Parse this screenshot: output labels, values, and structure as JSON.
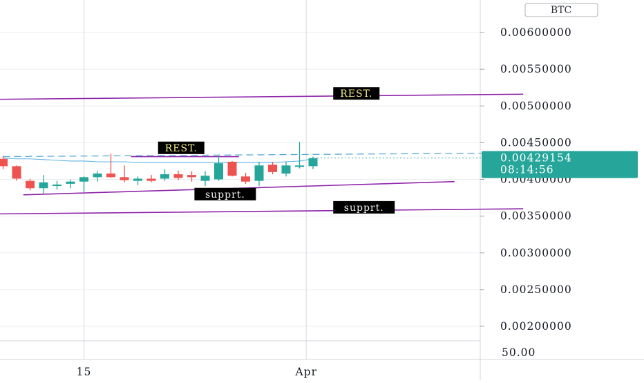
{
  "currency_badge": "BTC",
  "chart_data": {
    "type": "candlestick",
    "title": "",
    "y_axis": {
      "ylim": [
        0.0018,
        0.0065
      ],
      "ticks": [
        0.006,
        0.0055,
        0.005,
        0.0045,
        0.004,
        0.0035,
        0.003,
        0.0025,
        0.002
      ],
      "tick_labels": [
        "0.00600000",
        "0.00550000",
        "0.00500000",
        "0.00450000",
        "0.00400000",
        "0.00350000",
        "0.00300000",
        "0.00250000",
        "0.00200000"
      ]
    },
    "x_axis": {
      "ticks": [
        {
          "label": "15",
          "bar": 6
        },
        {
          "label": "Apr",
          "bar": 22.5
        }
      ]
    },
    "indicator_pane": {
      "label": "50.00"
    },
    "current_price": {
      "value": "0.00429154",
      "countdown": "08:14:56",
      "price": 0.0042915
    },
    "grid": true,
    "candles": [
      {
        "o": 0.00428,
        "h": 0.00432,
        "l": 0.00414,
        "c": 0.00418,
        "dir": "down"
      },
      {
        "o": 0.00418,
        "h": 0.00419,
        "l": 0.00398,
        "c": 0.00401,
        "dir": "down"
      },
      {
        "o": 0.00398,
        "h": 0.00401,
        "l": 0.00385,
        "c": 0.00388,
        "dir": "down"
      },
      {
        "o": 0.00388,
        "h": 0.00406,
        "l": 0.00381,
        "c": 0.00396,
        "dir": "up"
      },
      {
        "o": 0.00391,
        "h": 0.00398,
        "l": 0.00386,
        "c": 0.00393,
        "dir": "up"
      },
      {
        "o": 0.00394,
        "h": 0.004,
        "l": 0.00388,
        "c": 0.00397,
        "dir": "up"
      },
      {
        "o": 0.00397,
        "h": 0.00404,
        "l": 0.00383,
        "c": 0.00403,
        "dir": "up"
      },
      {
        "o": 0.00403,
        "h": 0.00411,
        "l": 0.00397,
        "c": 0.00408,
        "dir": "up"
      },
      {
        "o": 0.00408,
        "h": 0.00435,
        "l": 0.00402,
        "c": 0.00403,
        "dir": "down"
      },
      {
        "o": 0.00403,
        "h": 0.00419,
        "l": 0.00396,
        "c": 0.00399,
        "dir": "down"
      },
      {
        "o": 0.00398,
        "h": 0.00404,
        "l": 0.00392,
        "c": 0.00401,
        "dir": "up"
      },
      {
        "o": 0.00401,
        "h": 0.00406,
        "l": 0.00396,
        "c": 0.00398,
        "dir": "down"
      },
      {
        "o": 0.00401,
        "h": 0.00414,
        "l": 0.00398,
        "c": 0.00407,
        "dir": "up"
      },
      {
        "o": 0.00407,
        "h": 0.00412,
        "l": 0.00399,
        "c": 0.00402,
        "dir": "down"
      },
      {
        "o": 0.00406,
        "h": 0.00411,
        "l": 0.00397,
        "c": 0.00403,
        "dir": "down"
      },
      {
        "o": 0.00398,
        "h": 0.00411,
        "l": 0.00391,
        "c": 0.00405,
        "dir": "up"
      },
      {
        "o": 0.004,
        "h": 0.00432,
        "l": 0.00398,
        "c": 0.00422,
        "dir": "up"
      },
      {
        "o": 0.00424,
        "h": 0.00425,
        "l": 0.00404,
        "c": 0.00405,
        "dir": "down"
      },
      {
        "o": 0.00404,
        "h": 0.00409,
        "l": 0.00394,
        "c": 0.00397,
        "dir": "down"
      },
      {
        "o": 0.00398,
        "h": 0.00424,
        "l": 0.00391,
        "c": 0.00419,
        "dir": "up"
      },
      {
        "o": 0.0042,
        "h": 0.00424,
        "l": 0.00407,
        "c": 0.0041,
        "dir": "down"
      },
      {
        "o": 0.00408,
        "h": 0.00424,
        "l": 0.00404,
        "c": 0.00419,
        "dir": "up"
      },
      {
        "o": 0.00417,
        "h": 0.00451,
        "l": 0.00415,
        "c": 0.00419,
        "dir": "up"
      },
      {
        "o": 0.00418,
        "h": 0.00431,
        "l": 0.00414,
        "c": 0.00429,
        "dir": "up"
      }
    ],
    "moving_average": [
      0.00429,
      0.00428,
      0.00428,
      0.00427,
      0.00426,
      0.00425,
      0.00425,
      0.00424,
      0.00424,
      0.00424,
      0.00423,
      0.00423,
      0.00423,
      0.00423,
      0.00423,
      0.00423,
      0.00423,
      0.00423,
      0.00423,
      0.00423,
      0.00423,
      0.00424,
      0.00425,
      0.00428
    ],
    "dashed_line": {
      "from": [
        0,
        0.00431
      ],
      "to": [
        38,
        0.00436
      ]
    },
    "trendlines": [
      {
        "label": "REST.",
        "from": [
          -0.5,
          0.00509
        ],
        "to": [
          38.6,
          0.00516
        ],
        "label_at": [
          24.5,
          0.00517
        ]
      },
      {
        "label": "REST.",
        "from": [
          9.5,
          0.00431
        ],
        "to": [
          17.5,
          0.00431
        ],
        "label_at": [
          11.5,
          0.00443
        ]
      },
      {
        "label": "supprt.",
        "from": [
          1.5,
          0.00379
        ],
        "to": [
          33.5,
          0.00397
        ],
        "label_at": [
          14.2,
          0.0038
        ]
      },
      {
        "label": "supprt.",
        "from": [
          -0.5,
          0.00353
        ],
        "to": [
          38.6,
          0.0036
        ],
        "label_at": [
          24.5,
          0.00362
        ]
      }
    ]
  }
}
